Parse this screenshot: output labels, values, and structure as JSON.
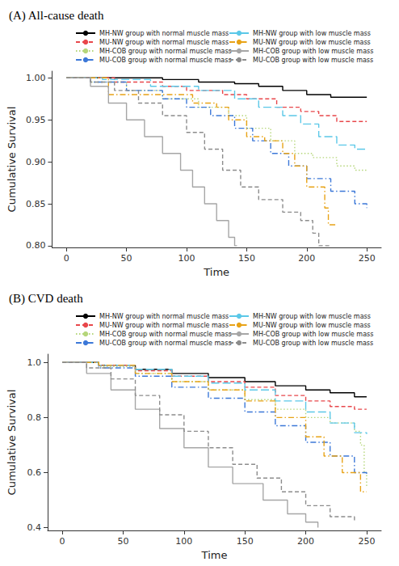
{
  "chart_data": [
    {
      "type": "line",
      "title": "(A) All-cause death",
      "x_label": "Time",
      "y_label": "Cumulative Survival",
      "xlim": [
        -12,
        262
      ],
      "xticks": [
        0,
        50,
        100,
        150,
        200,
        250
      ],
      "ylim": [
        0.798,
        1.008
      ],
      "yticks": [
        {
          "value": 0.8,
          "label": "0.80"
        },
        0.85,
        {
          "value": 0.9,
          "label": "0.90"
        },
        0.95,
        {
          "value": 1,
          "label": "1.00"
        }
      ],
      "grid": false,
      "series": [
        {
          "name": "MH-NW group with normal muscle mass",
          "color": "#000000",
          "line_style": "solid",
          "x": [
            0,
            60,
            80,
            110,
            140,
            160,
            180,
            200,
            220,
            250
          ],
          "values": [
            1,
            1,
            0.998,
            0.995,
            0.993,
            0.99,
            0.985,
            0.98,
            0.977,
            0.977
          ]
        },
        {
          "name": "MU-NW group with normal muscle mass",
          "color": "#e8474b",
          "line_style": "dashed",
          "x": [
            0,
            40,
            80,
            100,
            130,
            150,
            175,
            195,
            210,
            225,
            250
          ],
          "values": [
            1,
            0.995,
            0.99,
            0.985,
            0.98,
            0.975,
            0.965,
            0.96,
            0.955,
            0.948,
            0.948
          ]
        },
        {
          "name": "MH-COB group with normal muscle mass",
          "color": "#b5d67a",
          "line_style": "dotted",
          "x": [
            0,
            20,
            50,
            80,
            110,
            135,
            150,
            170,
            190,
            205,
            225,
            240,
            250
          ],
          "values": [
            1,
            0.995,
            0.985,
            0.975,
            0.965,
            0.955,
            0.94,
            0.925,
            0.91,
            0.905,
            0.895,
            0.89,
            0.89
          ]
        },
        {
          "name": "MU-COB group with normal muscle mass",
          "color": "#3c78d8",
          "line_style": "dashdot",
          "x": [
            0,
            20,
            50,
            80,
            100,
            120,
            140,
            155,
            170,
            185,
            200,
            220,
            240,
            250
          ],
          "values": [
            1,
            0.995,
            0.985,
            0.975,
            0.965,
            0.955,
            0.94,
            0.925,
            0.91,
            0.895,
            0.88,
            0.865,
            0.85,
            0.845
          ]
        },
        {
          "name": "MH-NW group with low muscle mass",
          "color": "#5bc8e8",
          "line_style": "longdash",
          "x": [
            0,
            30,
            70,
            110,
            140,
            160,
            180,
            195,
            210,
            225,
            240,
            250
          ],
          "values": [
            1,
            0.998,
            0.99,
            0.985,
            0.975,
            0.965,
            0.955,
            0.945,
            0.93,
            0.92,
            0.915,
            0.915
          ]
        },
        {
          "name": "MU-NW group with low muscle mass",
          "color": "#e8a317",
          "line_style": "dashdot",
          "x": [
            0,
            30,
            35,
            100,
            105,
            125,
            135,
            150,
            165,
            180,
            190,
            200,
            210,
            215,
            218,
            225
          ],
          "values": [
            1,
            1,
            0.98,
            0.98,
            0.97,
            0.965,
            0.95,
            0.93,
            0.925,
            0.91,
            0.895,
            0.87,
            0.87,
            0.845,
            0.825,
            0.825
          ]
        },
        {
          "name": "MH-COB group with low muscle mass",
          "color": "#a6a6a6",
          "line_style": "solid",
          "x": [
            0,
            20,
            35,
            50,
            65,
            80,
            95,
            105,
            115,
            125,
            135,
            140,
            142
          ],
          "values": [
            1,
            0.99,
            0.97,
            0.95,
            0.93,
            0.91,
            0.89,
            0.87,
            0.85,
            0.83,
            0.81,
            0.8,
            0.8
          ]
        },
        {
          "name": "MU-COB group with low muscle mass",
          "color": "#8c8c8c",
          "line_style": "dashed",
          "x": [
            0,
            20,
            40,
            60,
            80,
            100,
            115,
            130,
            145,
            160,
            180,
            195,
            205,
            210,
            220
          ],
          "values": [
            1,
            0.995,
            0.985,
            0.97,
            0.955,
            0.935,
            0.915,
            0.89,
            0.87,
            0.855,
            0.84,
            0.83,
            0.815,
            0.8,
            0.8
          ]
        }
      ]
    },
    {
      "type": "line",
      "title": "(B) CVD death",
      "x_label": "Time",
      "y_label": "Cumulative Survival",
      "xlim": [
        -12,
        262
      ],
      "xticks": [
        0,
        50,
        100,
        150,
        200,
        250
      ],
      "ylim": [
        0.39,
        1.03
      ],
      "yticks": [
        0.4,
        0.6,
        0.8,
        {
          "value": 1,
          "label": "1.0"
        }
      ],
      "grid": false,
      "series": [
        {
          "name": "MH-NW group with normal muscle mass",
          "color": "#000000",
          "line_style": "solid",
          "x": [
            0,
            30,
            60,
            90,
            120,
            150,
            175,
            200,
            220,
            240,
            250
          ],
          "values": [
            1,
            0.99,
            0.975,
            0.96,
            0.945,
            0.93,
            0.915,
            0.9,
            0.89,
            0.875,
            0.875
          ]
        },
        {
          "name": "MU-NW group with normal muscle mass",
          "color": "#e8474b",
          "line_style": "dashed",
          "x": [
            0,
            30,
            60,
            90,
            120,
            150,
            175,
            200,
            220,
            240,
            250
          ],
          "values": [
            1,
            0.99,
            0.97,
            0.95,
            0.93,
            0.91,
            0.88,
            0.86,
            0.84,
            0.83,
            0.83
          ]
        },
        {
          "name": "MH-COB group with normal muscle mass",
          "color": "#b5d67a",
          "line_style": "dotted",
          "x": [
            0,
            30,
            60,
            90,
            120,
            150,
            175,
            200,
            220,
            240,
            245,
            248,
            250
          ],
          "values": [
            1,
            0.985,
            0.96,
            0.93,
            0.9,
            0.865,
            0.83,
            0.8,
            0.78,
            0.75,
            0.7,
            0.6,
            0.55
          ]
        },
        {
          "name": "MU-COB group with normal muscle mass",
          "color": "#3c78d8",
          "line_style": "dashdot",
          "x": [
            0,
            30,
            60,
            90,
            120,
            150,
            175,
            200,
            220,
            240,
            250
          ],
          "values": [
            1,
            0.98,
            0.95,
            0.91,
            0.87,
            0.82,
            0.77,
            0.71,
            0.66,
            0.6,
            0.59
          ]
        },
        {
          "name": "MH-NW group with low muscle mass",
          "color": "#5bc8e8",
          "line_style": "longdash",
          "x": [
            0,
            30,
            60,
            90,
            120,
            150,
            175,
            200,
            220,
            240,
            250
          ],
          "values": [
            1,
            0.99,
            0.975,
            0.95,
            0.925,
            0.9,
            0.86,
            0.82,
            0.78,
            0.745,
            0.74
          ]
        },
        {
          "name": "MU-NW group with low muscle mass",
          "color": "#e8a317",
          "line_style": "dashdot",
          "x": [
            0,
            30,
            60,
            90,
            120,
            150,
            175,
            200,
            215,
            230,
            245,
            250
          ],
          "values": [
            1,
            0.99,
            0.96,
            0.93,
            0.9,
            0.86,
            0.8,
            0.73,
            0.66,
            0.6,
            0.53,
            0.53
          ]
        },
        {
          "name": "MH-COB group with low muscle mass",
          "color": "#a6a6a6",
          "line_style": "solid",
          "x": [
            0,
            20,
            40,
            60,
            80,
            100,
            120,
            140,
            165,
            185,
            200,
            210
          ],
          "values": [
            1,
            0.96,
            0.9,
            0.83,
            0.76,
            0.69,
            0.62,
            0.56,
            0.5,
            0.45,
            0.42,
            0.4
          ]
        },
        {
          "name": "MU-COB group with low muscle mass",
          "color": "#8c8c8c",
          "line_style": "dashed",
          "x": [
            0,
            20,
            40,
            60,
            80,
            100,
            120,
            140,
            160,
            180,
            200,
            220,
            240
          ],
          "values": [
            1,
            0.98,
            0.94,
            0.88,
            0.81,
            0.75,
            0.69,
            0.63,
            0.58,
            0.53,
            0.48,
            0.44,
            0.42
          ]
        }
      ]
    }
  ]
}
